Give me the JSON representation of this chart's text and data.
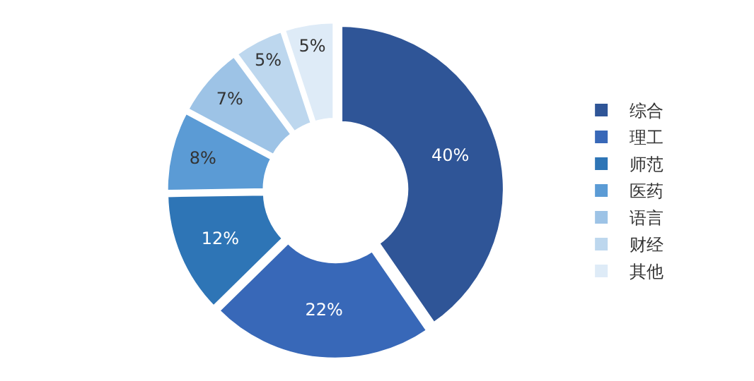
{
  "chart_data": {
    "type": "donut",
    "categories": [
      "综合",
      "理工",
      "师范",
      "医药",
      "语言",
      "财经",
      "其他"
    ],
    "values": [
      40,
      22,
      12,
      8,
      7,
      5,
      5
    ],
    "value_labels": [
      "40%",
      "22%",
      "12%",
      "8%",
      "7%",
      "5%",
      "5%"
    ],
    "colors": [
      "#2f5597",
      "#3868b8",
      "#2e75b6",
      "#5b9bd5",
      "#9dc3e6",
      "#bdd7ee",
      "#deebf7"
    ],
    "legend": "right"
  }
}
